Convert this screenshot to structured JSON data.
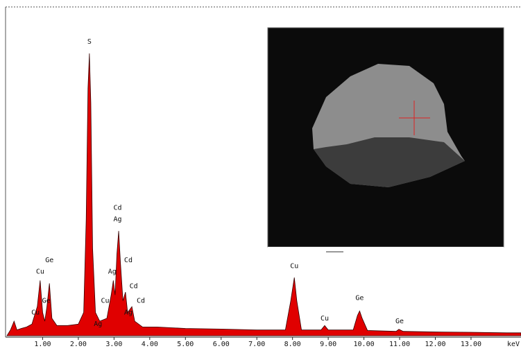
{
  "chart_data": {
    "type": "area",
    "x_label": "keV",
    "color": "#e00000",
    "x": [
      0,
      0.1,
      0.2,
      0.28,
      0.4,
      0.55,
      0.7,
      0.85,
      0.93,
      1.0,
      1.06,
      1.12,
      1.19,
      1.26,
      1.4,
      1.7,
      2.0,
      2.15,
      2.22,
      2.27,
      2.31,
      2.35,
      2.4,
      2.48,
      2.6,
      2.8,
      2.92,
      2.98,
      3.03,
      3.08,
      3.13,
      3.18,
      3.25,
      3.32,
      3.38,
      3.5,
      3.58,
      3.8,
      4.2,
      5,
      6,
      7,
      7.8,
      7.95,
      8.05,
      8.12,
      8.25,
      8.8,
      8.9,
      9.0,
      9.7,
      9.82,
      9.88,
      9.95,
      10.1,
      10.9,
      10.98,
      11.1,
      12,
      13,
      14,
      14.4
    ],
    "values": [
      0,
      2,
      5,
      2,
      2.5,
      3,
      4,
      10,
      19,
      8,
      5,
      10,
      18,
      6,
      3.5,
      3.5,
      4,
      8,
      40,
      85,
      97,
      80,
      30,
      8,
      5,
      6,
      14,
      19,
      14,
      28,
      36,
      25,
      12,
      15,
      8,
      10,
      5,
      3,
      3,
      2.5,
      2.3,
      2,
      2,
      12,
      20,
      12,
      2,
      2,
      3.5,
      2,
      2,
      7,
      8.5,
      6,
      1.8,
      1.5,
      2.2,
      1.5,
      1.3,
      1.2,
      1,
      1
    ],
    "xlim": [
      0,
      14.4
    ],
    "ylim": [
      0,
      102
    ],
    "xticks": [
      {
        "value": 1,
        "label": "1.00"
      },
      {
        "value": 2,
        "label": "2.00"
      },
      {
        "value": 3,
        "label": "3.00"
      },
      {
        "value": 4,
        "label": "4.00"
      },
      {
        "value": 5,
        "label": "5.00"
      },
      {
        "value": 6,
        "label": "6.00"
      },
      {
        "value": 7,
        "label": "7.00"
      },
      {
        "value": 8,
        "label": "8.00"
      },
      {
        "value": 9,
        "label": "9.00"
      },
      {
        "value": 10,
        "label": "10.00"
      },
      {
        "value": 11,
        "label": "11.00"
      },
      {
        "value": 12,
        "label": "12.00"
      },
      {
        "value": 13,
        "label": "13.00"
      }
    ],
    "annotations": [
      {
        "text": "S",
        "x": 2.31,
        "y": 101
      },
      {
        "text": "Ge",
        "x": 1.19,
        "y": 26
      },
      {
        "text": "Cu",
        "x": 0.93,
        "y": 22
      },
      {
        "text": "Cu",
        "x": 0.8,
        "y": 8
      },
      {
        "text": "Ge",
        "x": 1.1,
        "y": 12
      },
      {
        "text": "Cd",
        "x": 3.1,
        "y": 44
      },
      {
        "text": "Ag",
        "x": 3.1,
        "y": 40
      },
      {
        "text": "Cd",
        "x": 3.4,
        "y": 26
      },
      {
        "text": "Ag",
        "x": 2.95,
        "y": 22
      },
      {
        "text": "Cd",
        "x": 3.55,
        "y": 17
      },
      {
        "text": "Cd",
        "x": 3.75,
        "y": 12
      },
      {
        "text": "Cu",
        "x": 2.75,
        "y": 12
      },
      {
        "text": "Ag",
        "x": 3.4,
        "y": 8
      },
      {
        "text": "Ag",
        "x": 2.55,
        "y": 4
      },
      {
        "text": "Cu",
        "x": 8.05,
        "y": 24
      },
      {
        "text": "Cu",
        "x": 8.9,
        "y": 6
      },
      {
        "text": "Ge",
        "x": 9.88,
        "y": 13
      },
      {
        "text": "Ge",
        "x": 11.0,
        "y": 5
      }
    ]
  }
}
